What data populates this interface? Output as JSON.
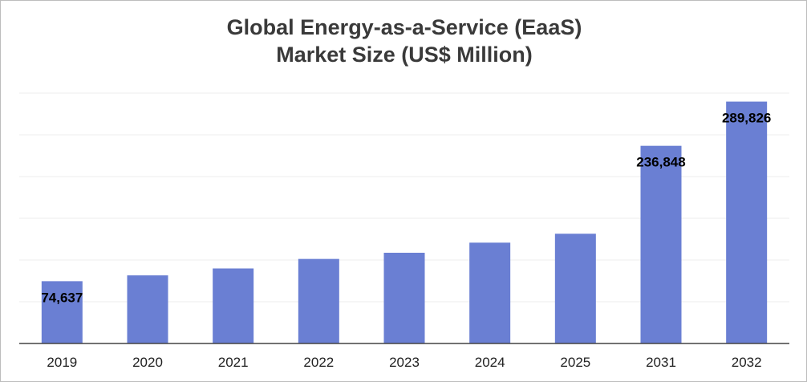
{
  "chart_data": {
    "type": "bar",
    "title_lines": [
      "Global Energy-as-a-Service (EaaS)",
      "Market Size (US$ Million)"
    ],
    "categories": [
      "2019",
      "2020",
      "2021",
      "2022",
      "2023",
      "2024",
      "2025",
      "2031",
      "2032"
    ],
    "values": [
      74637,
      81600,
      89900,
      101300,
      108700,
      120800,
      131500,
      236848,
      289826
    ],
    "data_labels": [
      "74,637",
      "",
      "",
      "",
      "",
      "",
      "",
      "236,848",
      "289,826"
    ],
    "ylim": [
      0,
      350000
    ],
    "grid": true,
    "bar_color": "#6a7fd3",
    "grid_color": "#ececec",
    "axis_color": "#444444"
  }
}
